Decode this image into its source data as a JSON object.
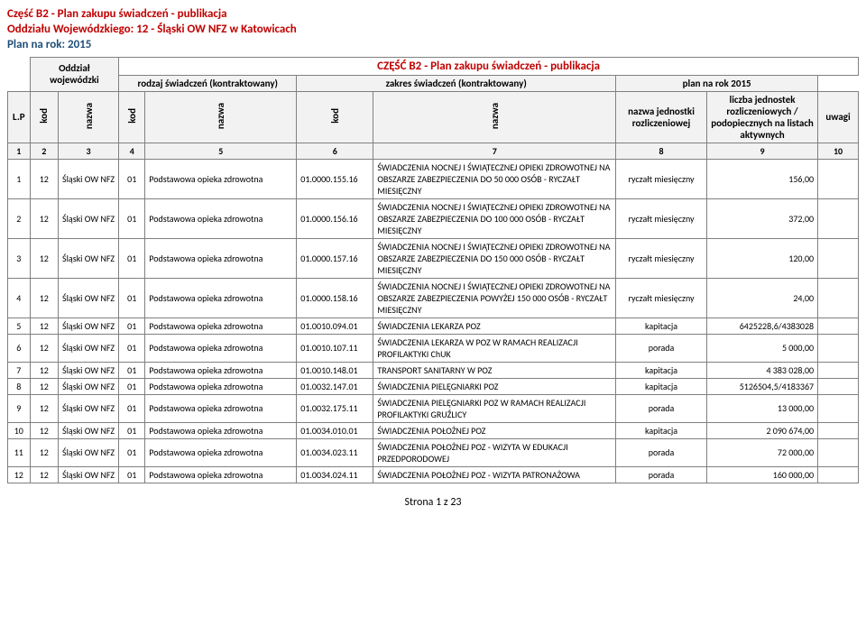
{
  "header": {
    "line1": "Część B2 - Plan zakupu świadczeń - publikacja",
    "line2": "Oddziału Wojewódzkiego: 12 - Śląski OW NFZ w Katowicach",
    "line3": "Plan na rok: 2015"
  },
  "table": {
    "section_title": "CZĘŚĆ B2 - Plan zakupu świadczeń - publikacja",
    "corner_top": "Oddział wojewódzki",
    "group1": "rodzaj świadczeń (kontraktowany)",
    "group2": "zakres świadczeń (kontraktowany)",
    "group3": "plan na rok 2015",
    "lp_label": "L.P",
    "kod": "kod",
    "nazwa": "nazwa",
    "jedn": "nazwa jednostki rozliczeniowej",
    "licz": "liczba jednostek rozliczeniowych / podopiecznych na listach aktywnych",
    "uwagi": "uwagi",
    "num_row": [
      "1",
      "2",
      "3",
      "4",
      "5",
      "6",
      "7",
      "8",
      "9",
      "10"
    ],
    "rows": [
      {
        "lp": "1",
        "kod1": "12",
        "naz1": "Śląski OW NFZ",
        "kod2": "01",
        "naz2": "Podstawowa opieka zdrowotna",
        "kod3": "01.0000.155.16",
        "naz3": "ŚWIADCZENIA NOCNEJ I ŚWIĄTECZNEJ OPIEKI ZDROWOTNEJ NA OBSZARZE ZABEZPIECZENIA DO 50 000 OSÓB - RYCZAŁT MIESIĘCZNY",
        "jedn": "ryczałt miesięczny",
        "licz": "156,00",
        "uwag": ""
      },
      {
        "lp": "2",
        "kod1": "12",
        "naz1": "Śląski OW NFZ",
        "kod2": "01",
        "naz2": "Podstawowa opieka zdrowotna",
        "kod3": "01.0000.156.16",
        "naz3": "ŚWIADCZENIA NOCNEJ I ŚWIĄTECZNEJ OPIEKI ZDROWOTNEJ NA OBSZARZE ZABEZPIECZENIA DO 100 000 OSÓB - RYCZAŁT MIESIĘCZNY",
        "jedn": "ryczałt miesięczny",
        "licz": "372,00",
        "uwag": ""
      },
      {
        "lp": "3",
        "kod1": "12",
        "naz1": "Śląski OW NFZ",
        "kod2": "01",
        "naz2": "Podstawowa opieka zdrowotna",
        "kod3": "01.0000.157.16",
        "naz3": "ŚWIADCZENIA NOCNEJ I ŚWIĄTECZNEJ OPIEKI ZDROWOTNEJ NA OBSZARZE ZABEZPIECZENIA DO 150 000 OSÓB - RYCZAŁT MIESIĘCZNY",
        "jedn": "ryczałt miesięczny",
        "licz": "120,00",
        "uwag": ""
      },
      {
        "lp": "4",
        "kod1": "12",
        "naz1": "Śląski OW NFZ",
        "kod2": "01",
        "naz2": "Podstawowa opieka zdrowotna",
        "kod3": "01.0000.158.16",
        "naz3": "ŚWIADCZENIA NOCNEJ I ŚWIĄTECZNEJ OPIEKI ZDROWOTNEJ NA OBSZARZE ZABEZPIECZENIA POWYŻEJ 150 000 OSÓB - RYCZAŁT MIESIĘCZNY",
        "jedn": "ryczałt miesięczny",
        "licz": "24,00",
        "uwag": ""
      },
      {
        "lp": "5",
        "kod1": "12",
        "naz1": "Śląski OW NFZ",
        "kod2": "01",
        "naz2": "Podstawowa opieka zdrowotna",
        "kod3": "01.0010.094.01",
        "naz3": "ŚWIADCZENIA  LEKARZA  POZ",
        "jedn": "kapitacja",
        "licz": "6425228,6/4383028",
        "uwag": ""
      },
      {
        "lp": "6",
        "kod1": "12",
        "naz1": "Śląski OW NFZ",
        "kod2": "01",
        "naz2": "Podstawowa opieka zdrowotna",
        "kod3": "01.0010.107.11",
        "naz3": "ŚWIADCZENIA LEKARZA W POZ W RAMACH REALIZACJI  PROFILAKTYKI  ChUK",
        "jedn": "porada",
        "licz": "5 000,00",
        "uwag": ""
      },
      {
        "lp": "7",
        "kod1": "12",
        "naz1": "Śląski OW NFZ",
        "kod2": "01",
        "naz2": "Podstawowa opieka zdrowotna",
        "kod3": "01.0010.148.01",
        "naz3": "TRANSPORT SANITARNY  W POZ",
        "jedn": "kapitacja",
        "licz": "4 383 028,00",
        "uwag": ""
      },
      {
        "lp": "8",
        "kod1": "12",
        "naz1": "Śląski OW NFZ",
        "kod2": "01",
        "naz2": "Podstawowa opieka zdrowotna",
        "kod3": "01.0032.147.01",
        "naz3": "ŚWIADCZENIA  PIELĘGNIARKI  POZ",
        "jedn": "kapitacja",
        "licz": "5126504,5/4183367",
        "uwag": ""
      },
      {
        "lp": "9",
        "kod1": "12",
        "naz1": "Śląski OW NFZ",
        "kod2": "01",
        "naz2": "Podstawowa opieka zdrowotna",
        "kod3": "01.0032.175.11",
        "naz3": "ŚWIADCZENIA PIELĘGNIARKI  POZ W RAMACH REALIZACJI PROFILAKTYKI  GRUŹLICY",
        "jedn": "porada",
        "licz": "13 000,00",
        "uwag": ""
      },
      {
        "lp": "10",
        "kod1": "12",
        "naz1": "Śląski OW NFZ",
        "kod2": "01",
        "naz2": "Podstawowa opieka zdrowotna",
        "kod3": "01.0034.010.01",
        "naz3": "ŚWIADCZENIA  POŁOŻNEJ  POZ",
        "jedn": "kapitacja",
        "licz": "2 090 674,00",
        "uwag": ""
      },
      {
        "lp": "11",
        "kod1": "12",
        "naz1": "Śląski OW NFZ",
        "kod2": "01",
        "naz2": "Podstawowa opieka zdrowotna",
        "kod3": "01.0034.023.11",
        "naz3": "ŚWIADCZENIA POŁOŻNEJ POZ - WIZYTA W EDUKACJI PRZEDPORODOWEJ",
        "jedn": "porada",
        "licz": "72 000,00",
        "uwag": ""
      },
      {
        "lp": "12",
        "kod1": "12",
        "naz1": "Śląski OW NFZ",
        "kod2": "01",
        "naz2": "Podstawowa opieka zdrowotna",
        "kod3": "01.0034.024.11",
        "naz3": "ŚWIADCZENIA POŁOŻNEJ POZ -  WIZYTA PATRONAŻOWA",
        "jedn": "porada",
        "licz": "160 000,00",
        "uwag": ""
      }
    ]
  },
  "footer": "Strona 1 z 23"
}
